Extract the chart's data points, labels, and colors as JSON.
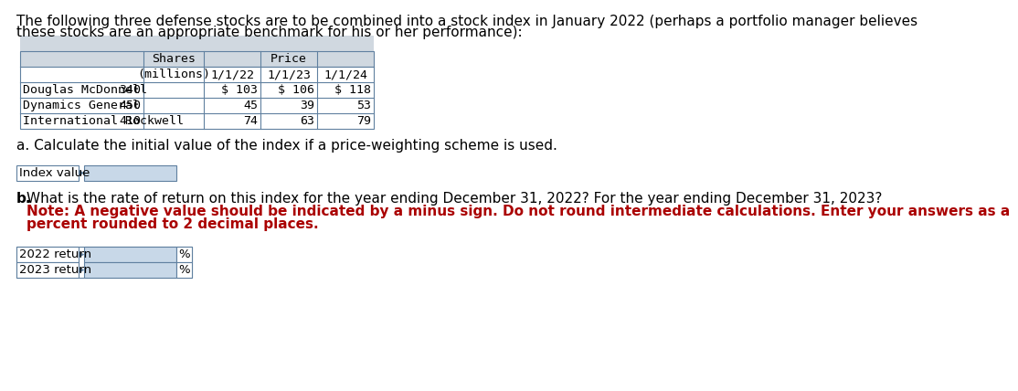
{
  "intro_line1": "The following three defense stocks are to be combined into a stock index in January 2022 (perhaps a portfolio manager believes",
  "intro_line2": "these stocks are an appropriate benchmark for his or her performance):",
  "table_rows": [
    [
      "Douglas McDonnell",
      "340",
      "$ 103",
      "$ 106",
      "$ 118"
    ],
    [
      "Dynamics General",
      "450",
      "45",
      "39",
      "53"
    ],
    [
      "International Rockwell",
      "410",
      "74",
      "63",
      "79"
    ]
  ],
  "header_bg": "#d0d8e0",
  "cell_bg": "#ffffff",
  "input_bg": "#c8d8e8",
  "border_color": "#6080a0",
  "question_a": "a. Calculate the initial value of the index if a price-weighting scheme is used.",
  "index_value_label": "Index value",
  "question_b1": "b. What is the rate of return on this index for the year ending December 31, 2022? For the year ending December 31, 2023?",
  "question_b2": "   Note: A negative value should be indicated by a minus sign. Do not round intermediate calculations. Enter your answers as a",
  "question_b3": "   percent rounded to 2 decimal places.",
  "return_labels": [
    "2022 return",
    "2023 return"
  ],
  "bg_color": "#ffffff",
  "text_color": "#000000",
  "red_color": "#aa0000"
}
